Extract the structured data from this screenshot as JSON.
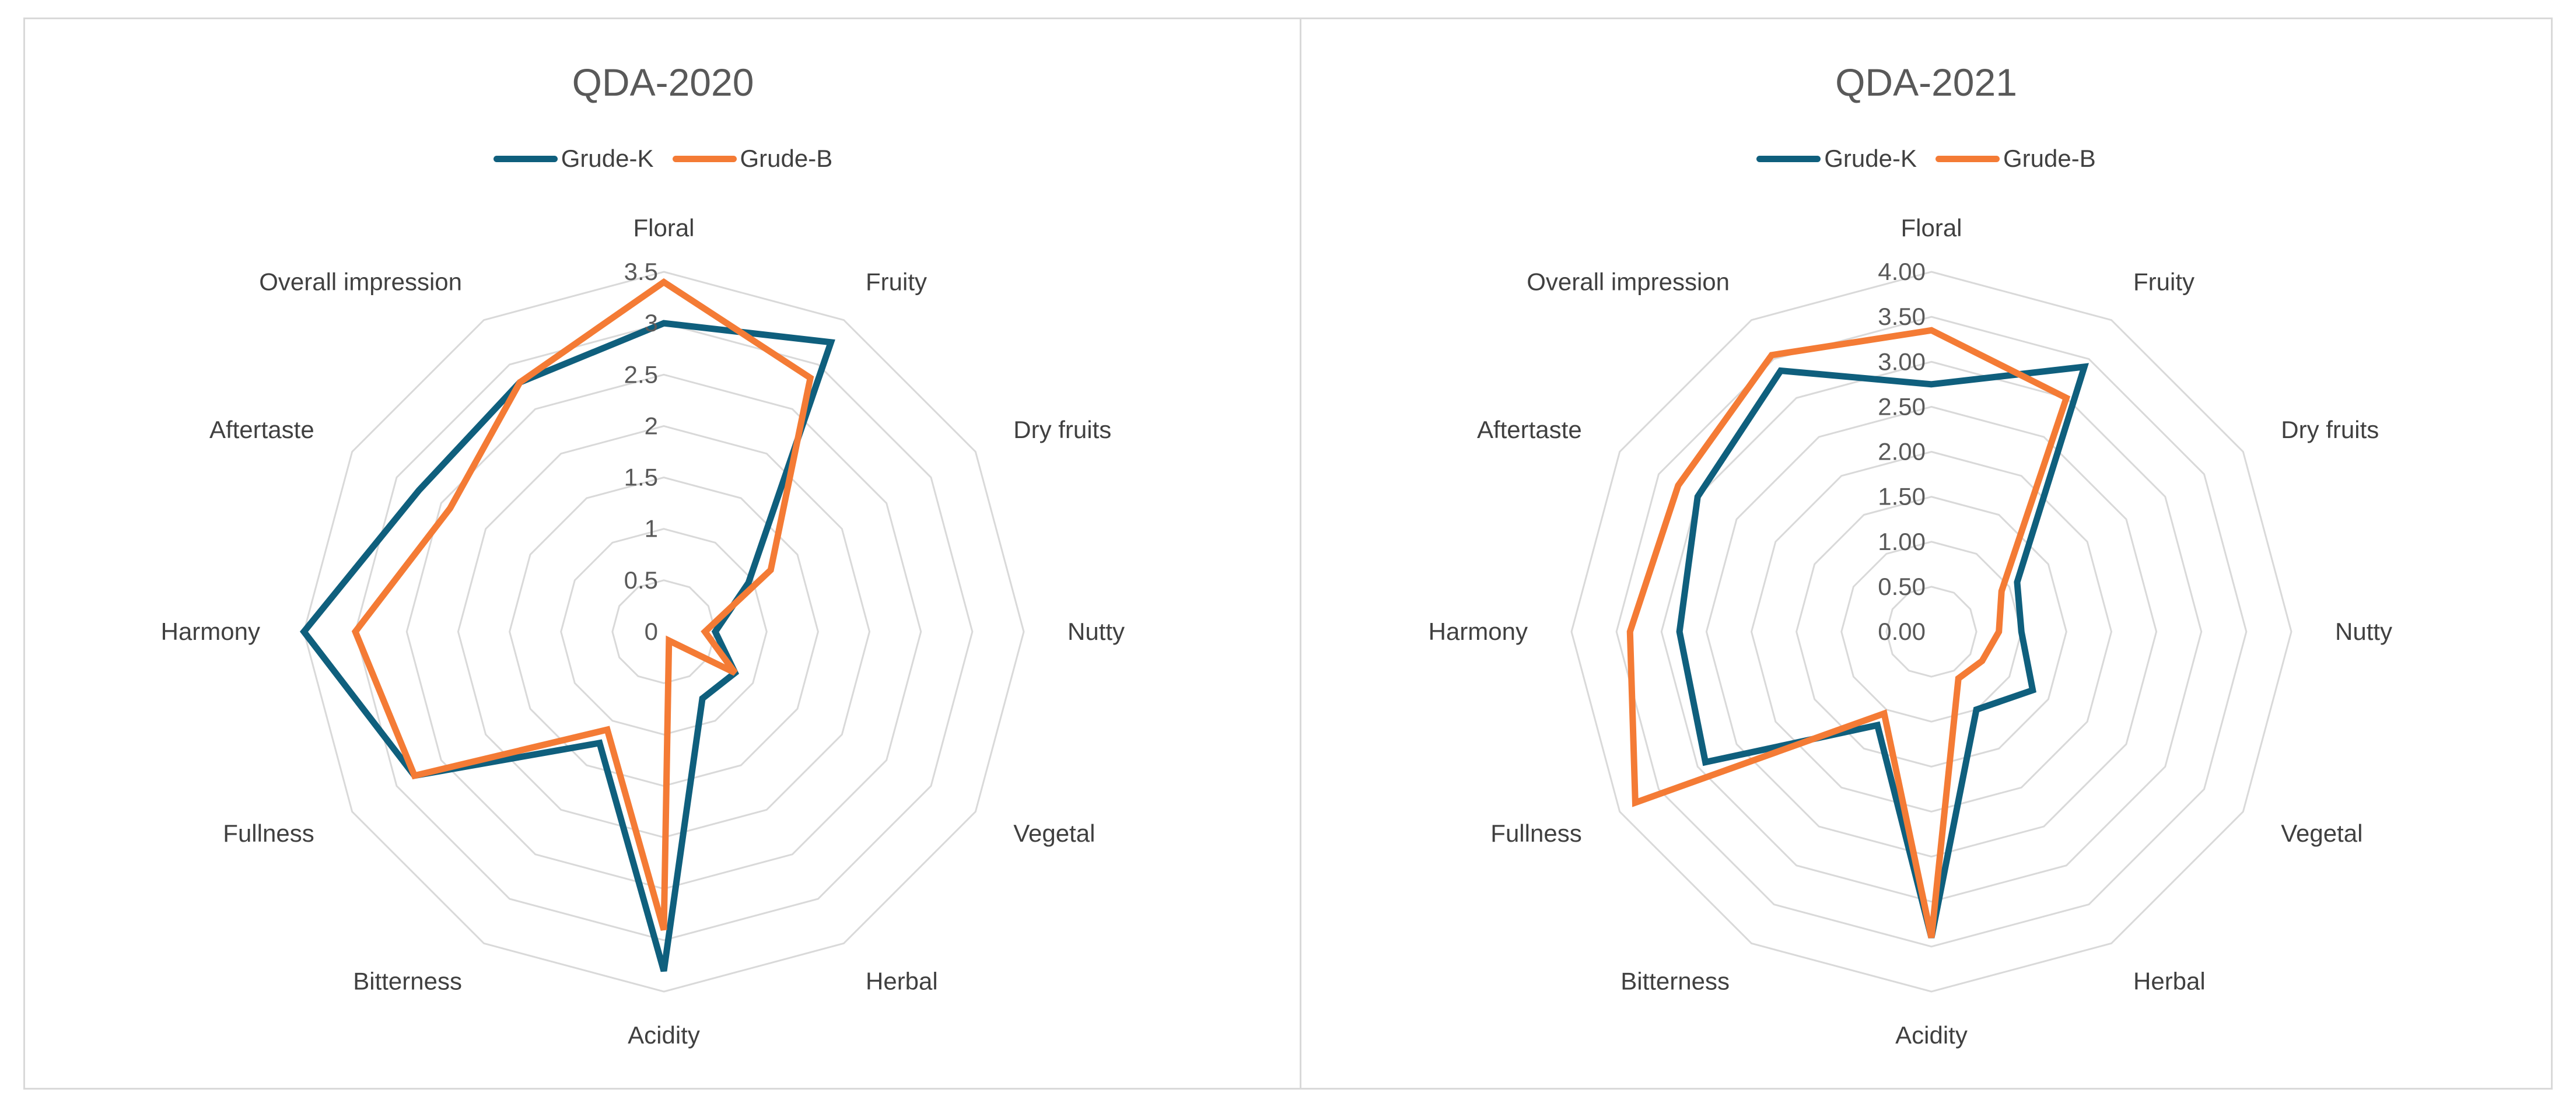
{
  "chart_data": [
    {
      "type": "radar",
      "title": "QDA-2020",
      "categories": [
        "Floral",
        "Fruity",
        "Dry fruits",
        "Nutty",
        "Vegetal",
        "Herbal",
        "Acidity",
        "Bitterness",
        "Fullness",
        "Harmony",
        "Aftertaste",
        "Overall impression"
      ],
      "ticks": [
        "0",
        "0.5",
        "1",
        "1.5",
        "2",
        "2.5",
        "3",
        "3.5"
      ],
      "ylim": [
        0,
        3.5
      ],
      "grid": true,
      "legend": "top",
      "series": [
        {
          "name": "Grude-K",
          "color": "#0f5f7d",
          "values": [
            3.0,
            3.25,
            0.95,
            0.5,
            0.8,
            0.75,
            3.3,
            1.25,
            2.8,
            3.5,
            2.75,
            2.8
          ]
        },
        {
          "name": "Grude-B",
          "color": "#f47b35",
          "values": [
            3.4,
            2.85,
            1.2,
            0.4,
            0.8,
            0.1,
            2.9,
            1.1,
            2.8,
            3.0,
            2.4,
            2.8
          ]
        }
      ]
    },
    {
      "type": "radar",
      "title": "QDA-2021",
      "categories": [
        "Floral",
        "Fruity",
        "Dry fruits",
        "Nutty",
        "Vegetal",
        "Herbal",
        "Acidity",
        "Bitterness",
        "Fullness",
        "Harmony",
        "Aftertaste",
        "Overall impression"
      ],
      "ticks": [
        "0.00",
        "0.50",
        "1.00",
        "1.50",
        "2.00",
        "2.50",
        "3.00",
        "3.50",
        "4.00"
      ],
      "ylim": [
        0,
        4
      ],
      "grid": true,
      "legend": "top",
      "series": [
        {
          "name": "Grude-K",
          "color": "#0f5f7d",
          "values": [
            2.75,
            3.4,
            1.1,
            1.0,
            1.3,
            1.0,
            3.4,
            1.2,
            2.9,
            2.8,
            3.0,
            3.35
          ]
        },
        {
          "name": "Grude-B",
          "color": "#f47b35",
          "values": [
            3.35,
            3.0,
            0.9,
            0.75,
            0.65,
            0.6,
            3.4,
            1.05,
            3.8,
            3.35,
            3.25,
            3.55
          ]
        }
      ]
    }
  ]
}
